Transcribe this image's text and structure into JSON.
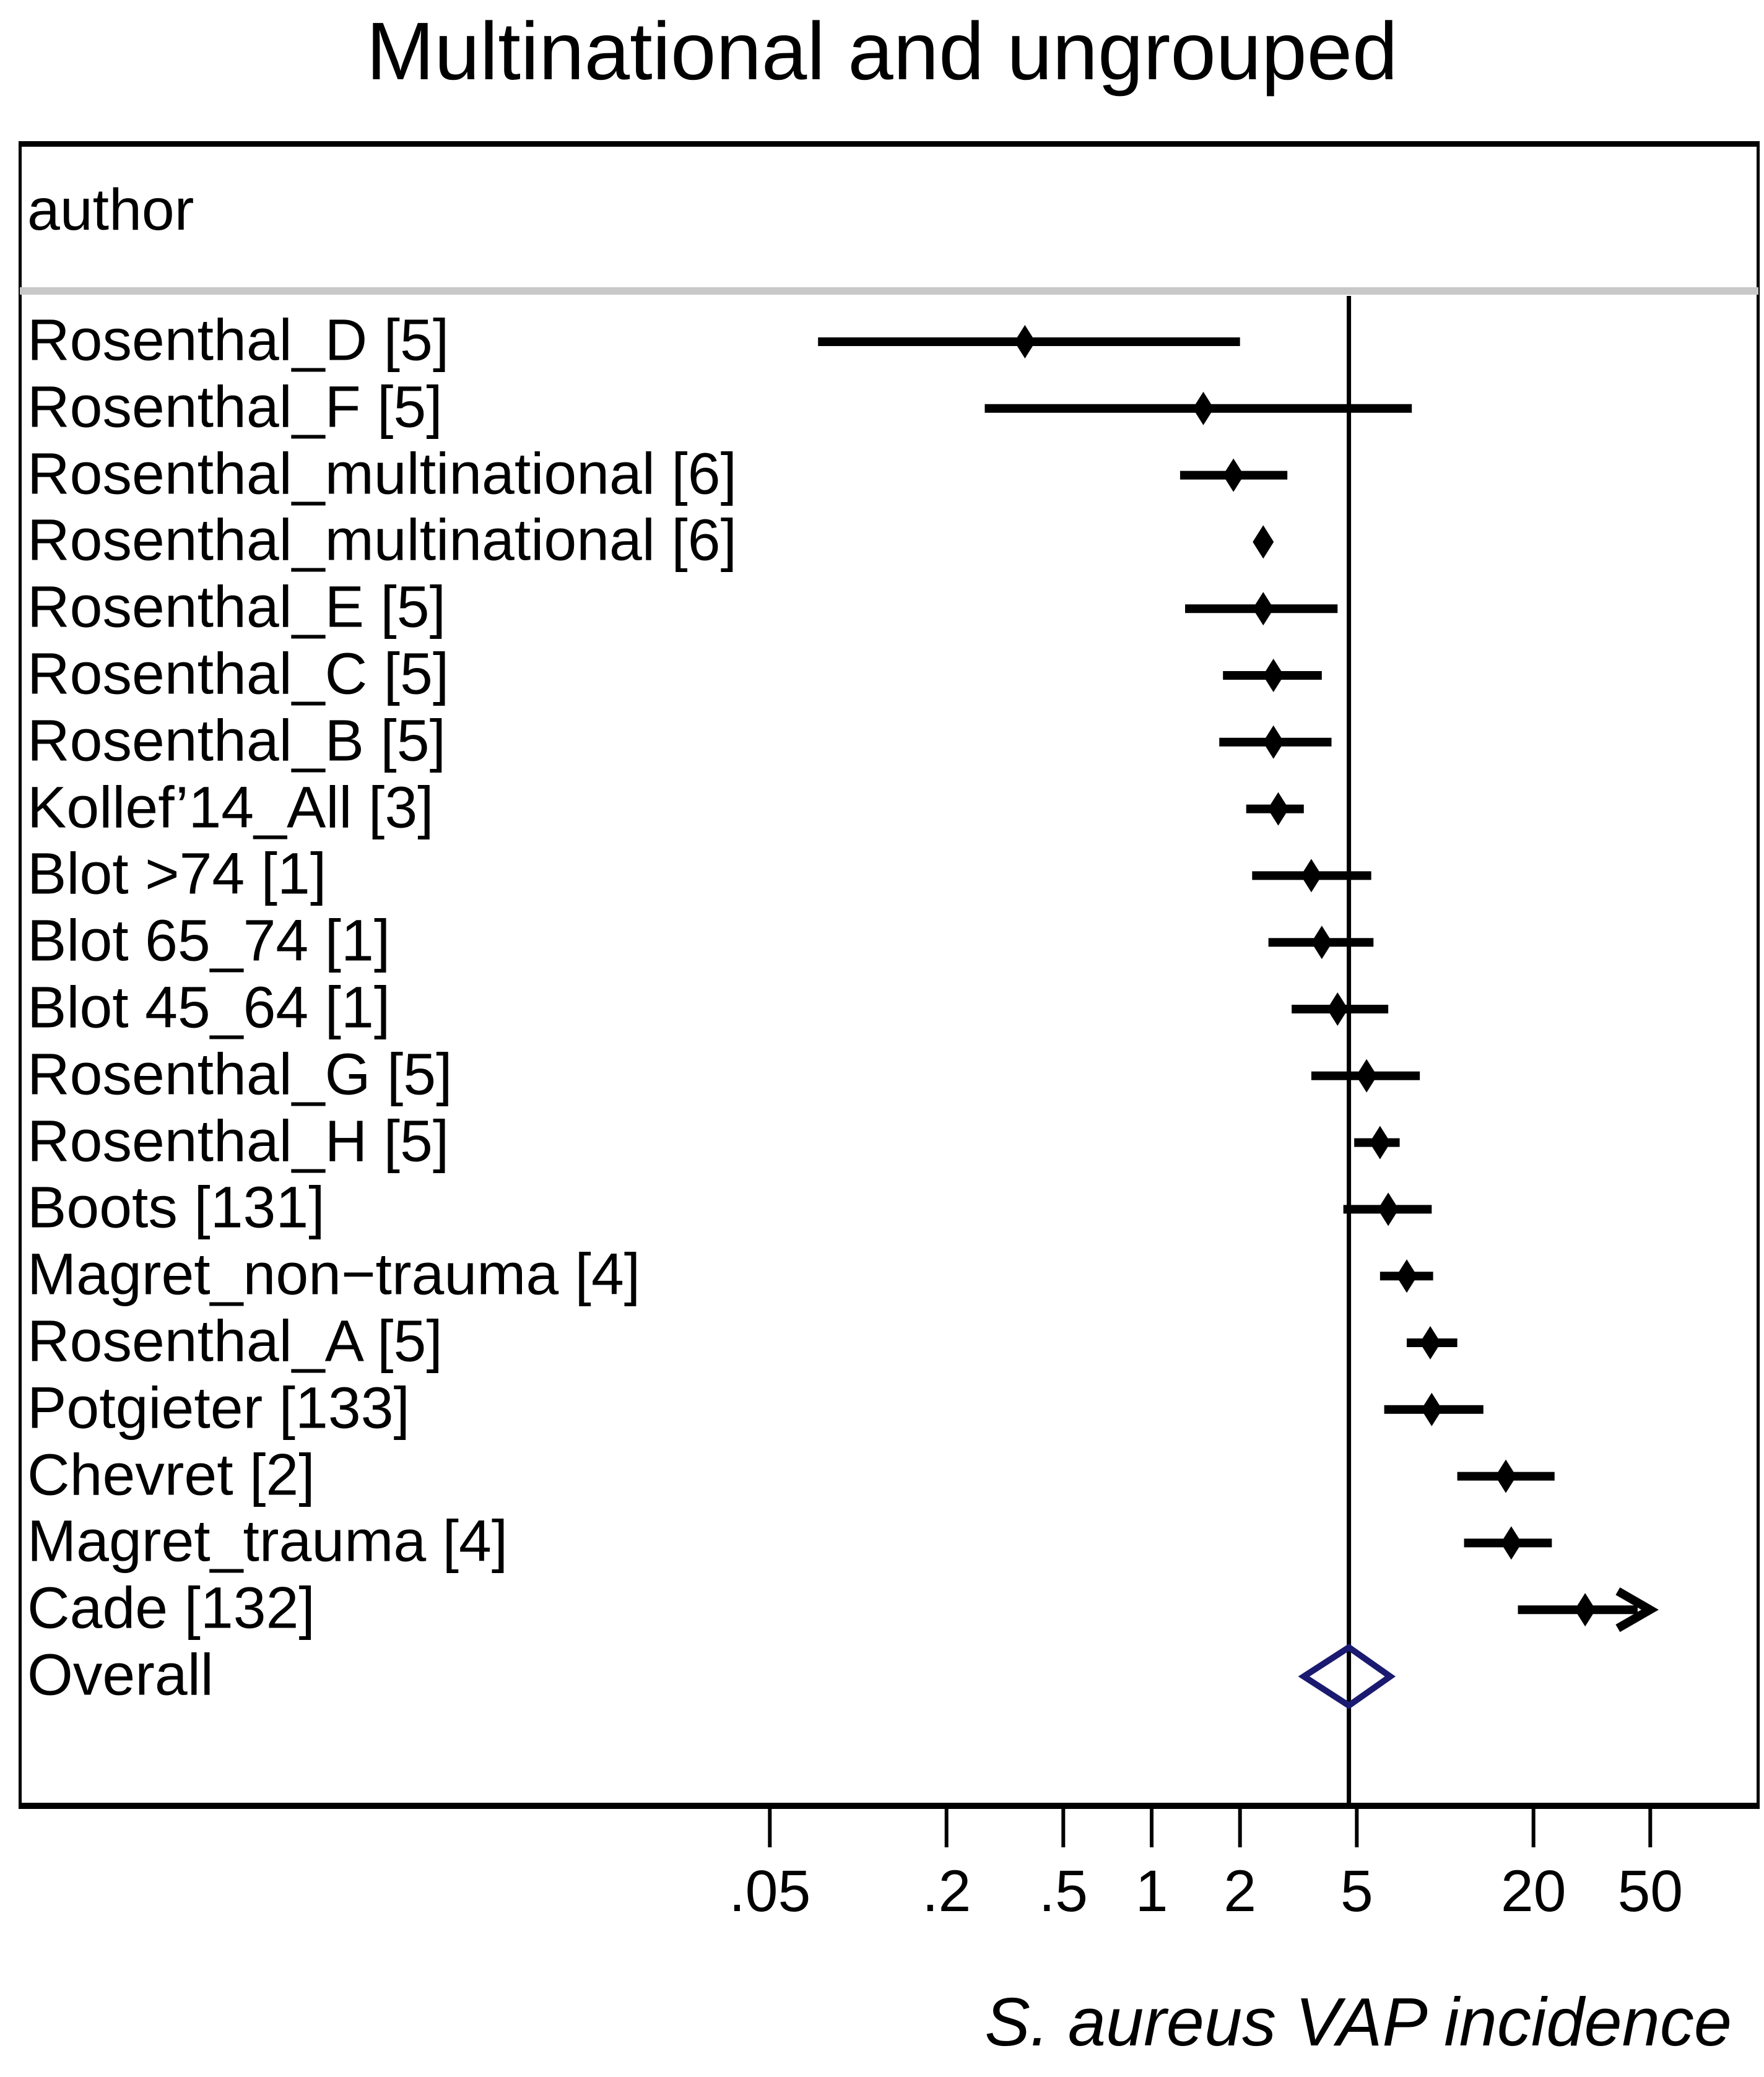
{
  "title": "Multinational and ungrouped",
  "table": {
    "header": "author"
  },
  "axis": {
    "tick_labels": [
      ".05",
      ".2",
      ".5",
      "1",
      "2",
      "5",
      "20",
      "50"
    ]
  },
  "chart_data": {
    "type": "forest",
    "title": "Multinational and ungrouped",
    "xlabel": "S. aureus VAP incidence",
    "x_scale": "log",
    "x_ticks": [
      0.05,
      0.2,
      0.5,
      1,
      2,
      5,
      20,
      50
    ],
    "xlim": [
      0.03,
      70
    ],
    "reference_line": 4.7,
    "column_header": "author",
    "grid": false,
    "studies": [
      {
        "label": "Rosenthal_D [5]",
        "estimate": 0.37,
        "ci_low": 0.073,
        "ci_high": 2.0
      },
      {
        "label": "Rosenthal_F [5]",
        "estimate": 1.5,
        "ci_low": 0.27,
        "ci_high": 7.7
      },
      {
        "label": "Rosenthal_multinational [6]",
        "estimate": 1.9,
        "ci_low": 1.25,
        "ci_high": 2.9
      },
      {
        "label": "Rosenthal_multinational [6]",
        "estimate": 2.4,
        "ci_low": 2.4,
        "ci_high": 2.4
      },
      {
        "label": "Rosenthal_E [5]",
        "estimate": 2.4,
        "ci_low": 1.3,
        "ci_high": 4.3
      },
      {
        "label": "Rosenthal_C [5]",
        "estimate": 2.6,
        "ci_low": 1.75,
        "ci_high": 3.8
      },
      {
        "label": "Rosenthal_B [5]",
        "estimate": 2.6,
        "ci_low": 1.7,
        "ci_high": 4.1
      },
      {
        "label": "Kollef’14_All [3]",
        "estimate": 2.7,
        "ci_low": 2.1,
        "ci_high": 3.3
      },
      {
        "label": "Blot >74 [1]",
        "estimate": 3.5,
        "ci_low": 2.2,
        "ci_high": 5.6
      },
      {
        "label": "Blot 65_74 [1]",
        "estimate": 3.8,
        "ci_low": 2.5,
        "ci_high": 5.7
      },
      {
        "label": "Blot 45_64 [1]",
        "estimate": 4.3,
        "ci_low": 3.0,
        "ci_high": 6.4
      },
      {
        "label": "Rosenthal_G [5]",
        "estimate": 5.4,
        "ci_low": 3.5,
        "ci_high": 8.2
      },
      {
        "label": "Rosenthal_H [5]",
        "estimate": 6.0,
        "ci_low": 4.9,
        "ci_high": 7.0
      },
      {
        "label": "Boots [131]",
        "estimate": 6.4,
        "ci_low": 4.5,
        "ci_high": 9.0
      },
      {
        "label": "Magret_non−trauma [4]",
        "estimate": 7.4,
        "ci_low": 6.0,
        "ci_high": 9.1
      },
      {
        "label": "Rosenthal_A [5]",
        "estimate": 8.9,
        "ci_low": 7.4,
        "ci_high": 11.0
      },
      {
        "label": "Potgieter [133]",
        "estimate": 9.0,
        "ci_low": 6.2,
        "ci_high": 13.5
      },
      {
        "label": "Chevret [2]",
        "estimate": 16.1,
        "ci_low": 11.0,
        "ci_high": 23.6
      },
      {
        "label": "Magret_trauma [4]",
        "estimate": 16.8,
        "ci_low": 11.6,
        "ci_high": 23.1
      },
      {
        "label": "Cade [132]",
        "estimate": 30,
        "ci_low": 17.7,
        "ci_high": 48,
        "arrow_high": true
      }
    ],
    "overall": {
      "label": "Overall",
      "estimate": 4.7,
      "ci_low": 3.3,
      "ci_high": 6.5
    }
  },
  "colors": {
    "marker": "#000000",
    "overall_diamond": "#1a1a70",
    "separator": "#c8c8c8"
  }
}
